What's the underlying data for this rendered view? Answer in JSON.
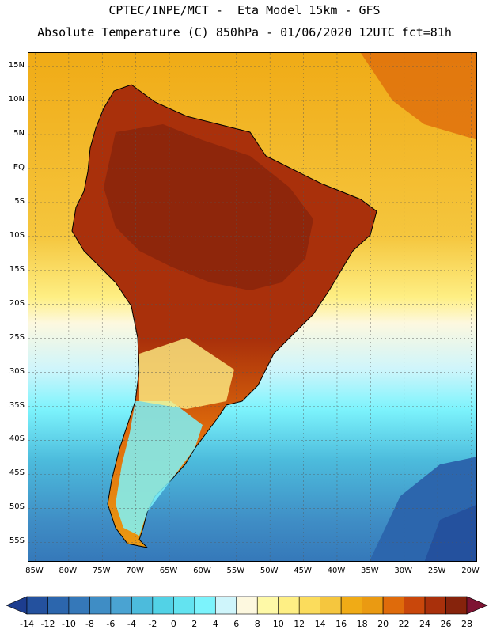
{
  "header": {
    "line1": "CPTEC/INPE/MCT -  Eta Model 15km - GFS",
    "line2": "Absolute Temperature (C) 850hPa - 01/06/2020 12UTC fct=81h"
  },
  "map": {
    "lat_labels": [
      "15N",
      "10N",
      "5N",
      "EQ",
      "5S",
      "10S",
      "15S",
      "20S",
      "25S",
      "30S",
      "35S",
      "40S",
      "45S",
      "50S",
      "55S"
    ],
    "lon_labels": [
      "85W",
      "80W",
      "75W",
      "70W",
      "65W",
      "60W",
      "55W",
      "50W",
      "45W",
      "40W",
      "35W",
      "30W",
      "25W",
      "20W"
    ],
    "lat_range": [
      -58.0,
      17.0
    ],
    "lon_range": [
      -86.0,
      -19.0
    ]
  },
  "colorbar": {
    "labels": [
      "-14",
      "-12",
      "-10",
      "-8",
      "-6",
      "-4",
      "-2",
      "0",
      "2",
      "4",
      "6",
      "8",
      "10",
      "12",
      "14",
      "16",
      "18",
      "20",
      "22",
      "24",
      "26",
      "28"
    ],
    "colors": [
      "#1d3d8f",
      "#24519e",
      "#2c66ad",
      "#3578b9",
      "#3f8dc5",
      "#4aa3d2",
      "#4cbbdc",
      "#52d2e6",
      "#63e3f0",
      "#7cf3fc",
      "#cff5fb",
      "#fdf8df",
      "#fef9a7",
      "#feef84",
      "#fbdc5c",
      "#f5c63e",
      "#f0ab16",
      "#ea9a12",
      "#df6b0b",
      "#c9470b",
      "#a9300b",
      "#86230c",
      "#7e1433"
    ]
  }
}
